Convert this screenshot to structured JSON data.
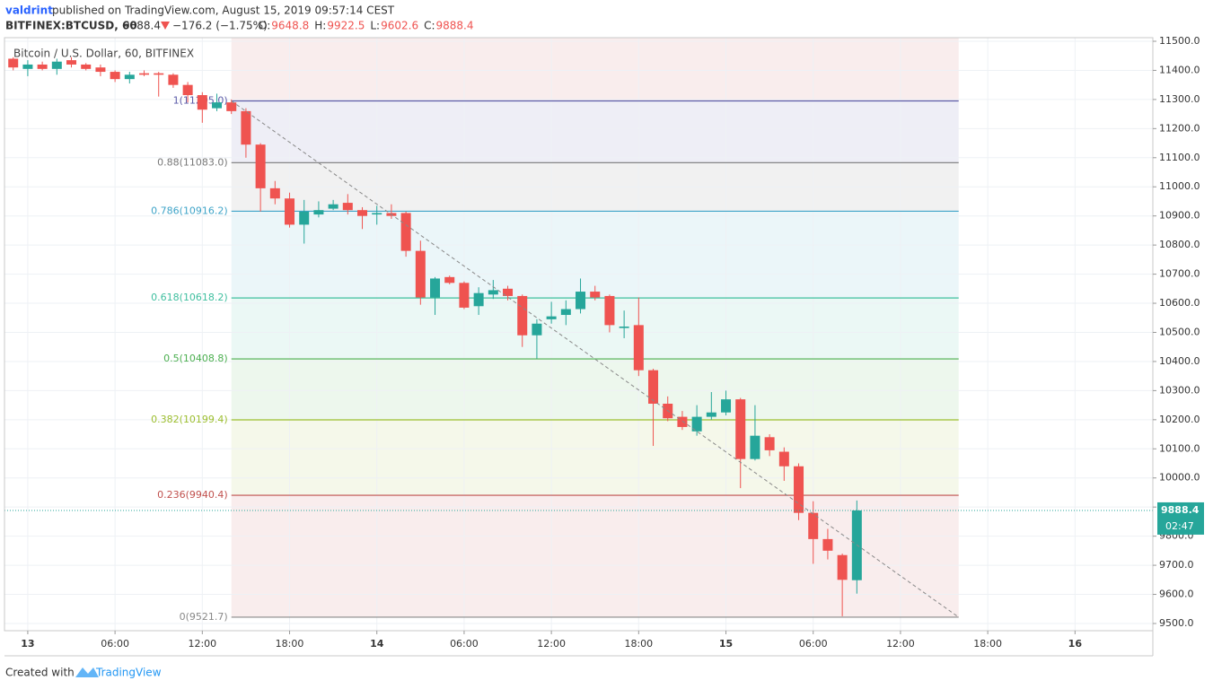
{
  "header": {
    "author": "valdrint",
    "published": "published on TradingView.com, August 15, 2019 09:57:14 CEST",
    "symbol": "BITFINEX:BTCUSD, 60",
    "last": "9888.4",
    "change": "−176.2 (−1.75%)",
    "ohlc": [
      {
        "key": "O:",
        "value": "9648.8"
      },
      {
        "key": "H:",
        "value": "9922.5"
      },
      {
        "key": "L:",
        "value": "9602.6"
      },
      {
        "key": "C:",
        "value": "9888.4"
      }
    ]
  },
  "chart_data": {
    "type": "candlestick",
    "title": "Bitcoin / U.S. Dollar, 60, BITFINEX",
    "x": [
      -1,
      0,
      1,
      2,
      3,
      4,
      5,
      6,
      7,
      8,
      9,
      10,
      11,
      12,
      13,
      14,
      15,
      16,
      17,
      18,
      19,
      20,
      21,
      22,
      23,
      24,
      25,
      26,
      27,
      28,
      29,
      30,
      31,
      32,
      33,
      34,
      35,
      36,
      37,
      38,
      39,
      40,
      41,
      42,
      43,
      44,
      45,
      46,
      47,
      48,
      49,
      50,
      51,
      52,
      53,
      54,
      55,
      56,
      57
    ],
    "open": [
      11440,
      11405,
      11420,
      11405,
      11435,
      11420,
      11410,
      11395,
      11370,
      11390,
      11390,
      11385,
      11350,
      11315,
      11270,
      11290,
      11260,
      11145,
      10995,
      10960,
      10870,
      10905,
      10925,
      10945,
      10920,
      10905,
      10910,
      10910,
      10780,
      10620,
      10690,
      10670,
      10590,
      10630,
      10650,
      10625,
      10490,
      10545,
      10560,
      10580,
      10640,
      10625,
      10515,
      10525,
      10370,
      10255,
      10210,
      10160,
      10210,
      10225,
      10270,
      10065,
      10140,
      10090,
      10040,
      9880,
      9790,
      9735,
      9648.8
    ],
    "high": [
      11445,
      11435,
      11430,
      11440,
      11445,
      11425,
      11420,
      11400,
      11395,
      11400,
      11395,
      11390,
      11360,
      11325,
      11320,
      11300,
      11270,
      11150,
      11020,
      10980,
      10955,
      10950,
      10955,
      10975,
      10930,
      10935,
      10940,
      10915,
      10815,
      10690,
      10695,
      10675,
      10655,
      10680,
      10660,
      10630,
      10545,
      10605,
      10610,
      10685,
      10660,
      10630,
      10575,
      10620,
      10375,
      10280,
      10230,
      10250,
      10295,
      10300,
      10275,
      10250,
      10150,
      10105,
      10050,
      9920,
      9825,
      9740,
      9922.5
    ],
    "low": [
      11400,
      11380,
      11400,
      11385,
      11410,
      11400,
      11380,
      11360,
      11355,
      11380,
      11310,
      11340,
      11290,
      11220,
      11260,
      11250,
      11100,
      10915,
      10940,
      10860,
      10805,
      10895,
      10920,
      10905,
      10855,
      10870,
      10890,
      10760,
      10595,
      10560,
      10665,
      10580,
      10560,
      10615,
      10610,
      10450,
      10410,
      10530,
      10525,
      10565,
      10610,
      10500,
      10480,
      10350,
      10110,
      10195,
      10165,
      10145,
      10200,
      10215,
      9965,
      10060,
      10075,
      9990,
      9855,
      9705,
      9720,
      9525,
      9602.6
    ],
    "close": [
      11410,
      11420,
      11405,
      11430,
      11420,
      11405,
      11395,
      11370,
      11385,
      11385,
      11385,
      11350,
      11315,
      11265,
      11290,
      11260,
      11145,
      10995,
      10960,
      10870,
      10915,
      10920,
      10940,
      10920,
      10900,
      10910,
      10900,
      10780,
      10620,
      10685,
      10670,
      10585,
      10635,
      10645,
      10625,
      10490,
      10530,
      10555,
      10580,
      10640,
      10620,
      10525,
      10520,
      10370,
      10255,
      10205,
      10175,
      10210,
      10225,
      10270,
      10065,
      10145,
      10095,
      10040,
      9880,
      9790,
      9750,
      9650,
      9888.4
    ],
    "up_color": "#26a69a",
    "down_color": "#ef5350",
    "xlim": [
      -1.6,
      77.35
    ],
    "xticks": [
      {
        "value": 0,
        "label": "13"
      },
      {
        "value": 6,
        "label": "06:00"
      },
      {
        "value": 12,
        "label": "12:00"
      },
      {
        "value": 18,
        "label": "18:00"
      },
      {
        "value": 24,
        "label": "14"
      },
      {
        "value": 30,
        "label": "06:00"
      },
      {
        "value": 36,
        "label": "12:00"
      },
      {
        "value": 42,
        "label": "18:00"
      },
      {
        "value": 48,
        "label": "15"
      },
      {
        "value": 54,
        "label": "06:00"
      },
      {
        "value": 60,
        "label": "12:00"
      },
      {
        "value": 66,
        "label": "18:00"
      },
      {
        "value": 72,
        "label": "16"
      }
    ],
    "ylim": [
      9475.3,
      11512.3
    ],
    "yticks": [
      {
        "value": 9500,
        "label": "9500.0"
      },
      {
        "value": 9600,
        "label": "9600.0"
      },
      {
        "value": 9700,
        "label": "9700.0"
      },
      {
        "value": 9800,
        "label": "9800.0"
      },
      {
        "value": 9900,
        "label": "9900.0"
      },
      {
        "value": 10000,
        "label": "10000.0"
      },
      {
        "value": 10100,
        "label": "10100.0"
      },
      {
        "value": 10200,
        "label": "10200.0"
      },
      {
        "value": 10300,
        "label": "10300.0"
      },
      {
        "value": 10400,
        "label": "10400.0"
      },
      {
        "value": 10500,
        "label": "10500.0"
      },
      {
        "value": 10600,
        "label": "10600.0"
      },
      {
        "value": 10700,
        "label": "10700.0"
      },
      {
        "value": 10800,
        "label": "10800.0"
      },
      {
        "value": 10900,
        "label": "10900.0"
      },
      {
        "value": 11000,
        "label": "11000.0"
      },
      {
        "value": 11100,
        "label": "11100.0"
      },
      {
        "value": 11200,
        "label": "11200.0"
      },
      {
        "value": 11300,
        "label": "11300.0"
      },
      {
        "value": 11400,
        "label": "11400.0"
      },
      {
        "value": 11500,
        "label": "11500.0"
      }
    ],
    "grid": true,
    "fib_range": [
      14,
      64
    ],
    "fib_levels": [
      {
        "value": 11295.0,
        "label": "1(11295.0)",
        "color": "#5b5ba8"
      },
      {
        "value": 11083.0,
        "label": "0.88(11083.0)",
        "color": "#787878"
      },
      {
        "value": 10916.2,
        "label": "0.786(10916.2)",
        "color": "#3fa4c8"
      },
      {
        "value": 10618.2,
        "label": "0.618(10618.2)",
        "color": "#3fbf9f"
      },
      {
        "value": 10408.8,
        "label": "0.5(10408.8)",
        "color": "#4caf50"
      },
      {
        "value": 10199.4,
        "label": "0.382(10199.4)",
        "color": "#9cbe2f"
      },
      {
        "value": 9940.4,
        "label": "0.236(9940.4)",
        "color": "#c0504d"
      },
      {
        "value": 9521.7,
        "label": "0(9521.7)",
        "color": "#888888"
      }
    ],
    "trendline": {
      "x": [
        14,
        64
      ],
      "y": [
        11295.0,
        9521.7
      ],
      "color": "#888888"
    },
    "last_price": 9888.4,
    "countdown": "02:47"
  },
  "footer": {
    "created": "Created with",
    "brand": "TradingView"
  }
}
